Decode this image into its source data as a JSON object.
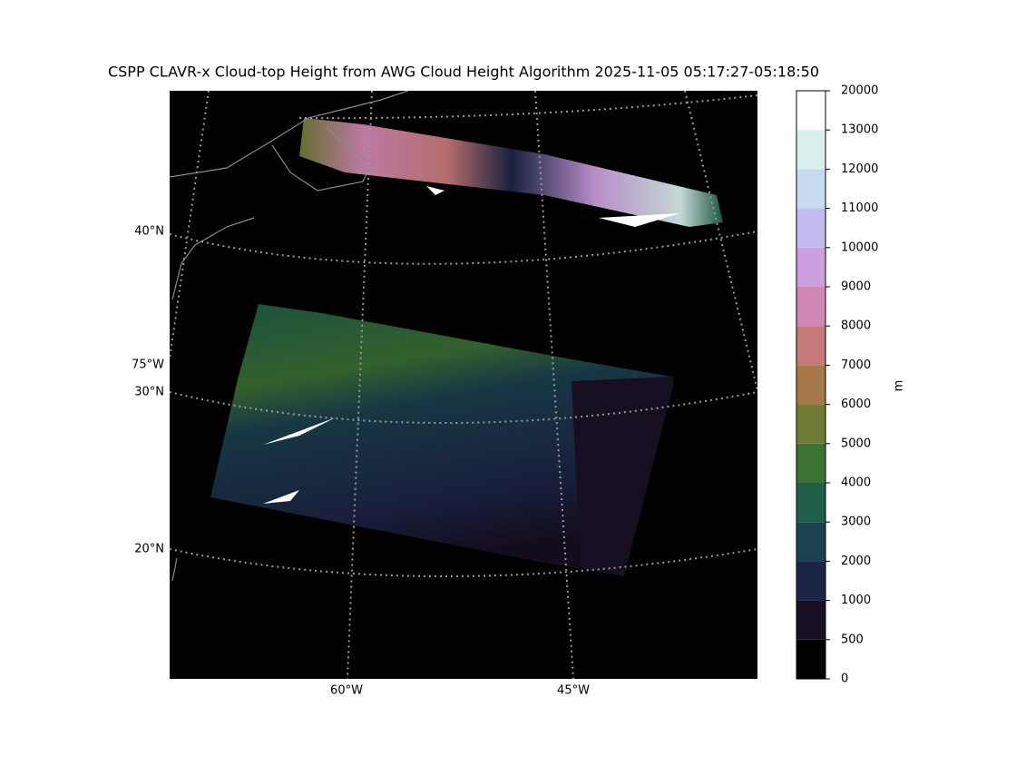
{
  "title": "CSPP CLAVR-x Cloud-top Height from AWG Cloud Height Algorithm 2025-11-05 05:17:27-05:18:50",
  "map": {
    "lat_labels": [
      "40°N",
      "30°N",
      "20°N"
    ],
    "lon_labels": [
      "75°W",
      "60°W",
      "45°W"
    ]
  },
  "colorbar": {
    "label": "m",
    "ticks": [
      0,
      500,
      1000,
      2000,
      3000,
      4000,
      5000,
      6000,
      7000,
      8000,
      9000,
      10000,
      11000,
      12000,
      13000,
      20000
    ],
    "colors": [
      "#000000",
      "#170e22",
      "#1c2446",
      "#1b4150",
      "#1f5f4a",
      "#3c7234",
      "#6f7a34",
      "#a57848",
      "#c77a78",
      "#d187b6",
      "#cc9fdf",
      "#c2bdee",
      "#c6dbf0",
      "#d9f0ec",
      "#ffffff"
    ]
  }
}
